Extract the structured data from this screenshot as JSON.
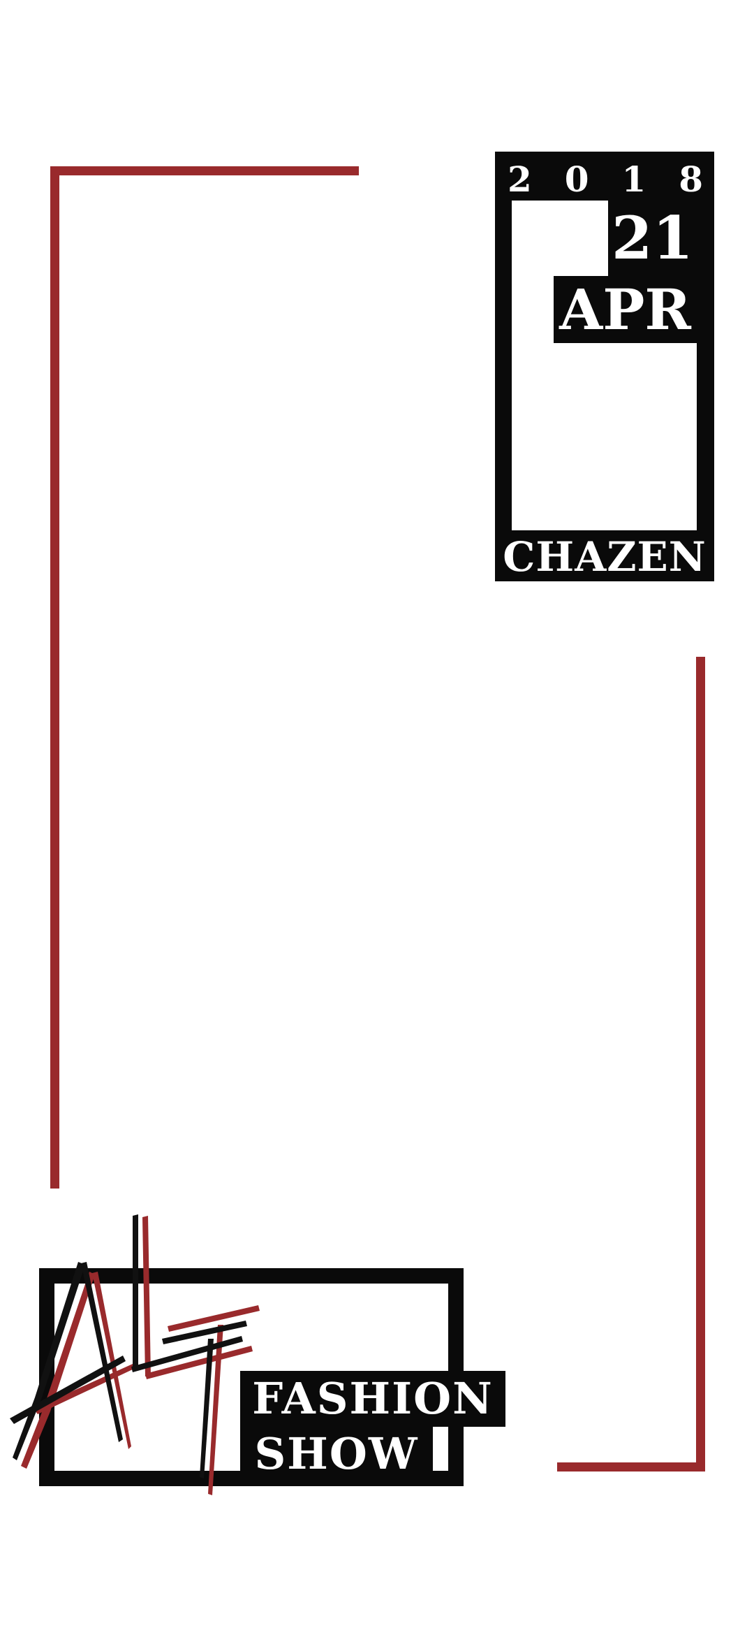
{
  "event": {
    "year_digits": [
      "2",
      "0",
      "1",
      "8"
    ],
    "day": "21",
    "month": "APR",
    "venue": "CHAZEN"
  },
  "logo": {
    "mark_letters": "ALT",
    "line1": "FASHION",
    "line2": "SHOW"
  },
  "colors": {
    "accent_red": "#992a2c",
    "black": "#0a0a0a",
    "background": "#ffffff"
  }
}
